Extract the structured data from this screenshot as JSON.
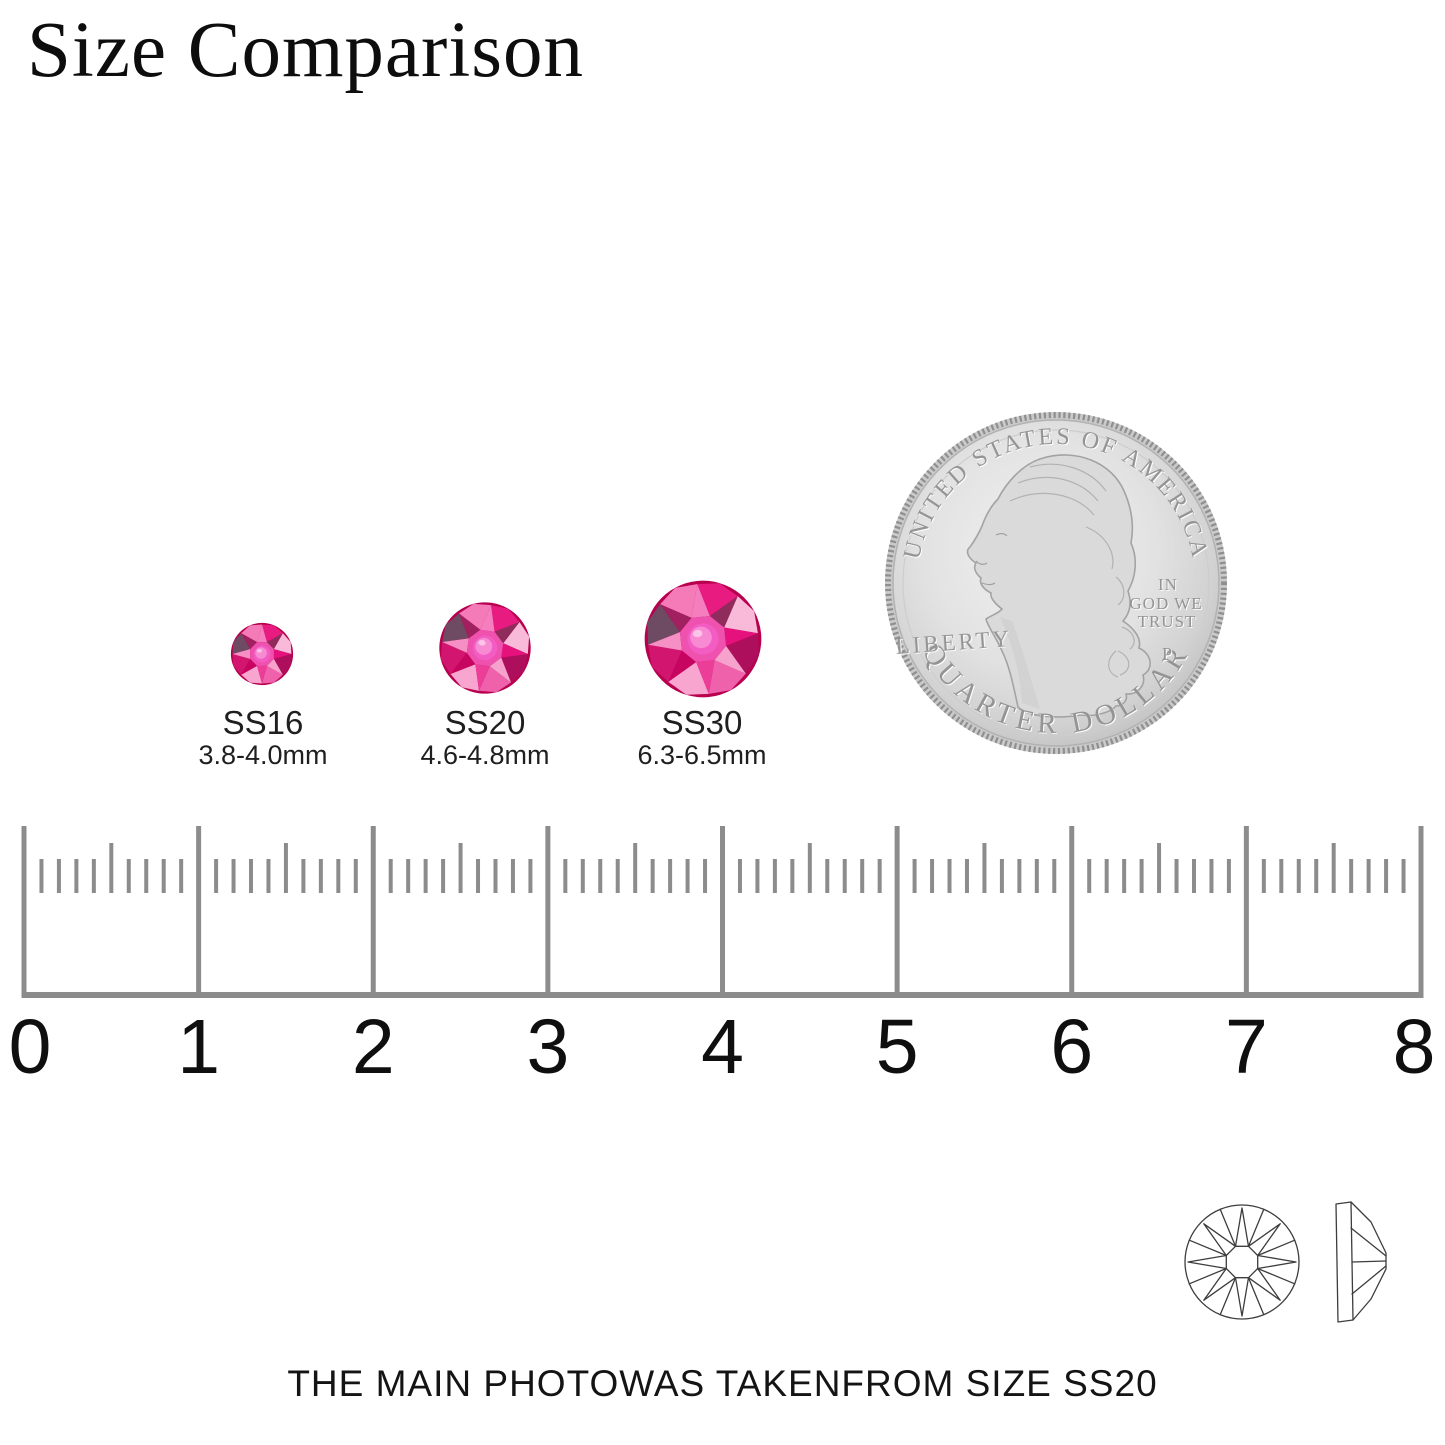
{
  "title": "Size Comparison",
  "stones": [
    {
      "name": "SS16",
      "range": "3.8-4.0mm"
    },
    {
      "name": "SS20",
      "range": "4.6-4.8mm"
    },
    {
      "name": "SS30",
      "range": "6.3-6.5mm"
    }
  ],
  "coin": {
    "top_legend": "UNITED STATES OF AMERICA",
    "liberty": "LIBERTY",
    "motto": [
      "IN",
      "GOD WE",
      "TRUST"
    ],
    "mint_mark": "P",
    "denomination": "QUARTER DOLLAR"
  },
  "ruler": {
    "unit_numbers": [
      "0",
      "1",
      "2",
      "3",
      "4",
      "5",
      "6",
      "7",
      "8"
    ],
    "minor_ticks_per_unit": 10
  },
  "footnote": "THE MAIN PHOTOWAS TAKENFROM SIZE SS20",
  "colors": {
    "stone_primary": "#e5127d",
    "stone_light": "#f6a2cd",
    "ruler_gray": "#8c8c8c",
    "coin_silver": "#d9d9d9"
  }
}
